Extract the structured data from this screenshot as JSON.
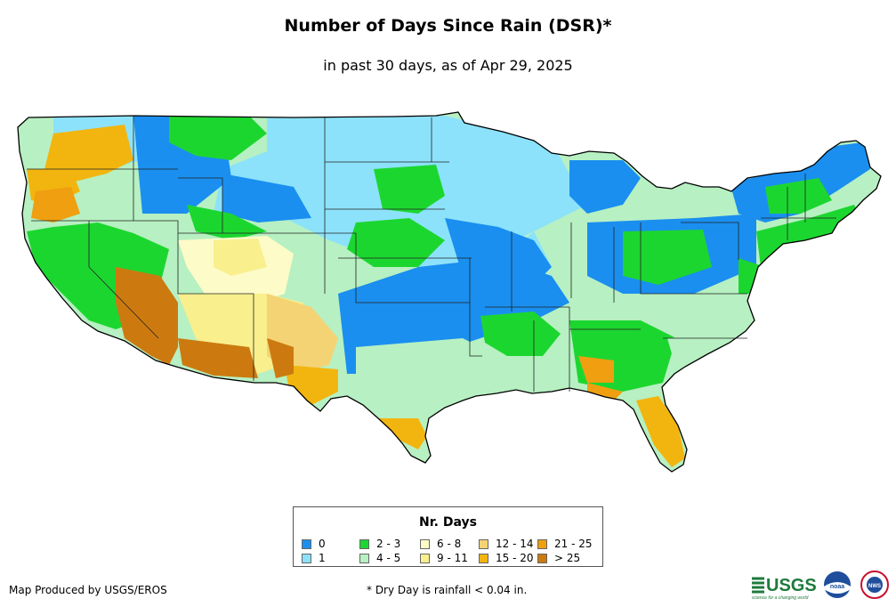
{
  "title": "Number of Days Since Rain (DSR)*",
  "subtitle": "in past 30 days, as of Apr 29, 2025",
  "legend": {
    "title": "Nr. Days",
    "items": [
      {
        "label": "0",
        "color": "#1a8ff0"
      },
      {
        "label": "1",
        "color": "#8ce2fb"
      },
      {
        "label": "2 - 3",
        "color": "#1cd630"
      },
      {
        "label": "4 - 5",
        "color": "#b7f0c2"
      },
      {
        "label": "6 - 8",
        "color": "#fdfbc8"
      },
      {
        "label": "9 - 11",
        "color": "#f9ef8c"
      },
      {
        "label": "12 - 14",
        "color": "#f4d375"
      },
      {
        "label": "15 - 20",
        "color": "#f2b50f"
      },
      {
        "label": "21 - 25",
        "color": "#ef9f10"
      },
      {
        "label": "> 25",
        "color": "#cc7a10"
      }
    ]
  },
  "credit": "Map Produced by USGS/EROS",
  "footnote": "* Dry Day is rainfall < 0.04 in.",
  "logos": {
    "usgs": "USGS",
    "usgs_tagline": "science for a changing world",
    "noaa": "noaa",
    "nws": "NWS"
  }
}
